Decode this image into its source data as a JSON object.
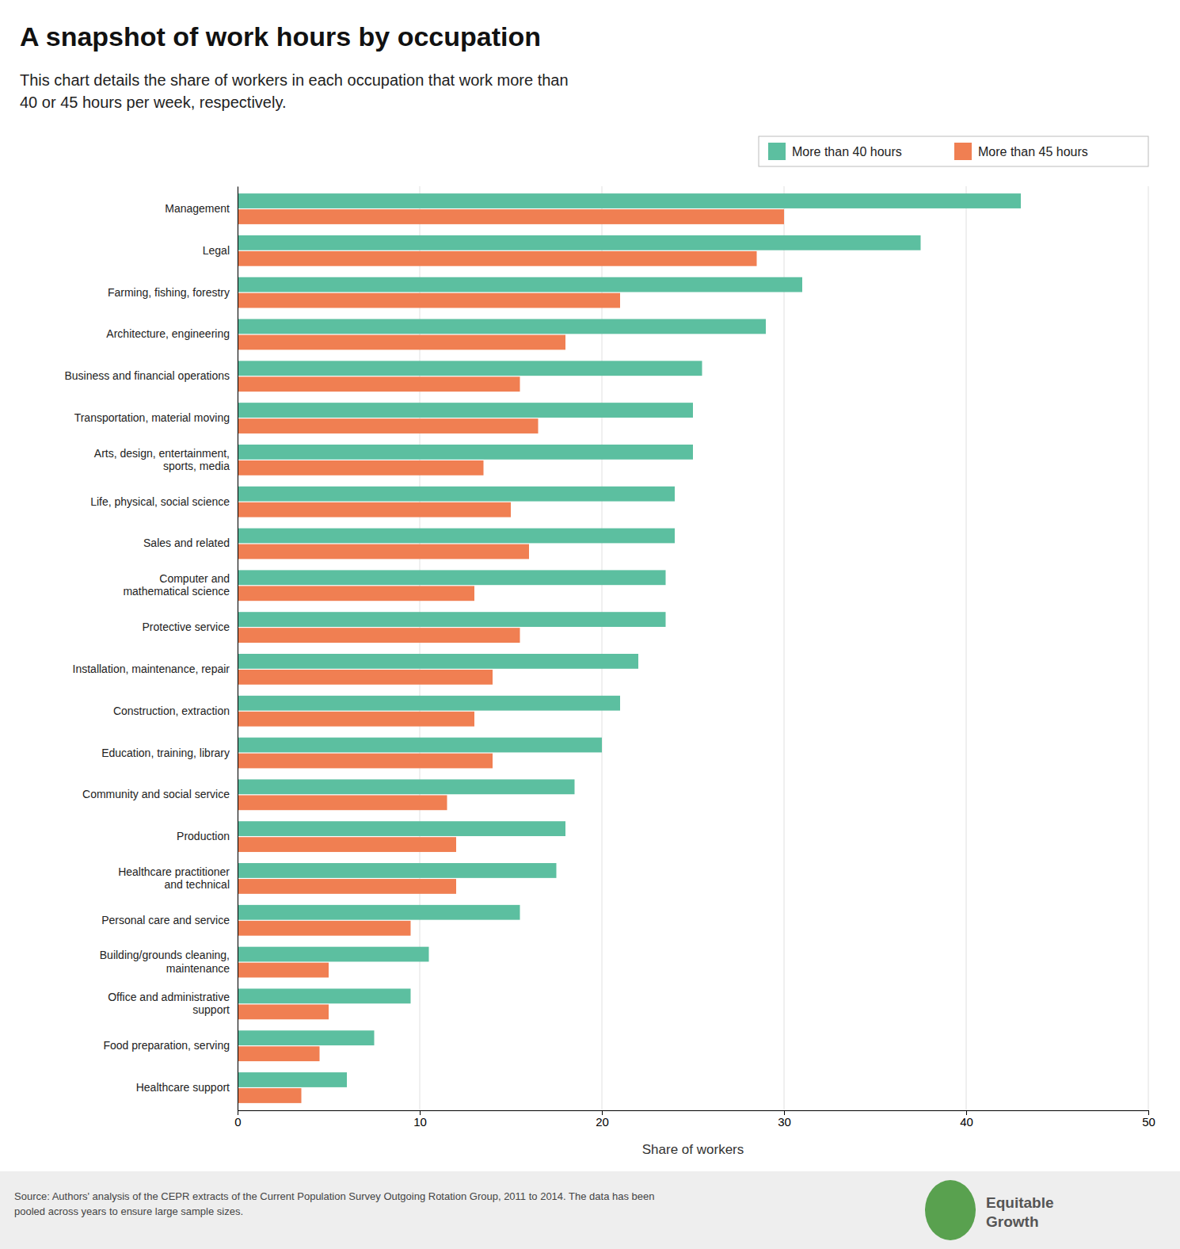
{
  "chart_data": {
    "type": "bar",
    "orientation": "horizontal",
    "title": "A snapshot of work hours by occupation",
    "subtitle": "This chart details the share of workers in each occupation that work more than\n40 or 45 hours per week, respectively.",
    "xlabel": "Share of workers",
    "source": "Source: Authors' analysis of the CEPR extracts of the Current Population Survey Outgoing Rotation Group, 2011 to 2014. The data has been\npooled across years to ensure large sample sizes.",
    "annotations": [
      "Equitable",
      "Growth"
    ],
    "categories": [
      "Management",
      "Legal",
      "Farming, fishing, forestry",
      "Architecture, engineering",
      "Business and financial operations",
      "Transportation, material moving",
      "Arts, design, entertainment,\nsports, media",
      "Life, physical, social science",
      "Sales and related",
      "Computer and\nmathematical science",
      "Protective service",
      "Installation, maintenance, repair",
      "Construction, extraction",
      "Education, training, library",
      "Community and social service",
      "Production",
      "Healthcare practitioner\nand technical",
      "Personal care and service",
      "Building/grounds cleaning,\nmaintenance",
      "Office and administrative\nsupport",
      "Food preparation, serving",
      "Healthcare support"
    ],
    "series": [
      {
        "name": "More than 40 hours",
        "color": "#5cbfa0",
        "values": [
          43.0,
          37.5,
          31.0,
          29.0,
          25.5,
          25.0,
          25.0,
          24.0,
          24.0,
          23.5,
          23.5,
          22.0,
          21.0,
          20.0,
          18.5,
          18.0,
          17.5,
          15.5,
          10.5,
          9.5,
          7.5,
          6.0
        ]
      },
      {
        "name": "More than 45 hours",
        "color": "#f07f52",
        "values": [
          30.0,
          28.5,
          21.0,
          18.0,
          15.5,
          16.5,
          13.5,
          15.0,
          16.0,
          13.0,
          15.5,
          14.0,
          13.0,
          14.0,
          11.5,
          12.0,
          12.0,
          9.5,
          5.0,
          5.0,
          4.5,
          3.5
        ]
      }
    ],
    "xlim": [
      0,
      50
    ],
    "xticks": [
      0,
      10,
      20,
      30,
      40,
      50
    ],
    "grid": true,
    "legend": "upper right"
  }
}
